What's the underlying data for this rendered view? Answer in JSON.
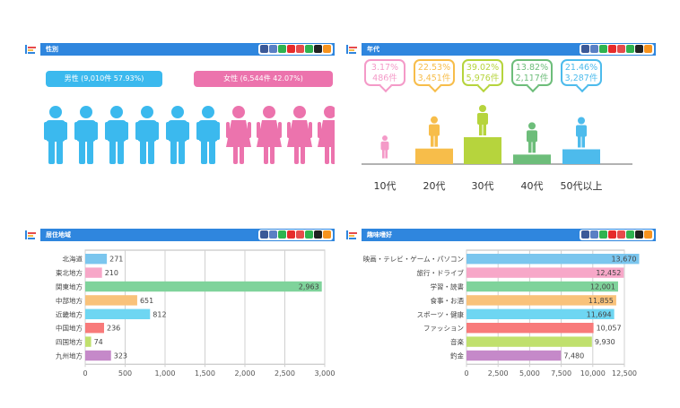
{
  "colors": {
    "header": "#2f86de",
    "male": "#3bb9ee",
    "female": "#ec73ad",
    "age": [
      "#f49ac8",
      "#f7bd4a",
      "#b6d43d",
      "#6dbd7a",
      "#4dbbec"
    ],
    "region_bars": [
      "#7bc6ee",
      "#f7a7c8",
      "#7fd39b",
      "#f9c27a",
      "#6ed6f2",
      "#f87a7a",
      "#c0e06d",
      "#c589c9"
    ],
    "hobby_bars": [
      "#7bc6ee",
      "#f7a7c8",
      "#7fd39b",
      "#f9c27a",
      "#6ed6f2",
      "#f87a7a",
      "#c0e06d",
      "#c589c9"
    ]
  },
  "toolbar_icons": [
    "facebook-icon",
    "instagram-icon",
    "line-icon",
    "youtube-icon",
    "mail-icon",
    "close-icon",
    "x-icon",
    "pin-icon"
  ],
  "panels": {
    "gender": {
      "title": "性別",
      "male_label": "男性 (9,010件 57.93%)",
      "female_label": "女性 (6,544件 42.07%)",
      "male_icons": 6,
      "female_icons": 4
    },
    "age": {
      "title": "年代",
      "groups": [
        {
          "label": "10代",
          "percent": "3.17%",
          "count": "486件",
          "value": 486
        },
        {
          "label": "20代",
          "percent": "22.53%",
          "count": "3,451件",
          "value": 3451
        },
        {
          "label": "30代",
          "percent": "39.02%",
          "count": "5,976件",
          "value": 5976
        },
        {
          "label": "40代",
          "percent": "13.82%",
          "count": "2,117件",
          "value": 2117
        },
        {
          "label": "50代以上",
          "percent": "21.46%",
          "count": "3,287件",
          "value": 3287
        }
      ]
    },
    "region": {
      "title": "居住地域"
    },
    "hobby": {
      "title": "趣味嗜好"
    }
  },
  "chart_data": [
    {
      "type": "bar",
      "orientation": "horizontal",
      "title": "居住地域",
      "categories": [
        "北海道",
        "東北地方",
        "関東地方",
        "中部地方",
        "近畿地方",
        "中国地方",
        "四国地方",
        "九州地方"
      ],
      "values": [
        271,
        210,
        2963,
        651,
        812,
        236,
        74,
        323
      ],
      "value_labels": [
        "271",
        "210",
        "2,963",
        "651",
        "812",
        "236",
        "74",
        "323"
      ],
      "xlim": [
        0,
        3000
      ],
      "ticks": [
        0,
        500,
        1000,
        1500,
        2000,
        2500,
        3000
      ],
      "tick_labels": [
        "0",
        "500",
        "1,000",
        "1,500",
        "2,000",
        "2,500",
        "3,000"
      ],
      "grid": true
    },
    {
      "type": "bar",
      "orientation": "horizontal",
      "title": "趣味嗜好",
      "categories": [
        "映画・テレビ・ゲーム・パソコン",
        "旅行・ドライブ",
        "学習・読書",
        "食事・お酒",
        "スポーツ・健康",
        "ファッション",
        "音楽",
        "釣金"
      ],
      "values": [
        13670,
        12452,
        12001,
        11855,
        11694,
        10057,
        9930,
        7480
      ],
      "value_labels": [
        "13,670",
        "12,452",
        "12,001",
        "11,855",
        "11,694",
        "10,057",
        "9,930",
        "7,480"
      ],
      "xlim": [
        0,
        12500
      ],
      "ticks": [
        0,
        2500,
        5000,
        7500,
        10000,
        12500
      ],
      "tick_labels": [
        "0",
        "2,500",
        "5,000",
        "7,500",
        "10,000",
        "12,500"
      ],
      "grid": true
    }
  ]
}
